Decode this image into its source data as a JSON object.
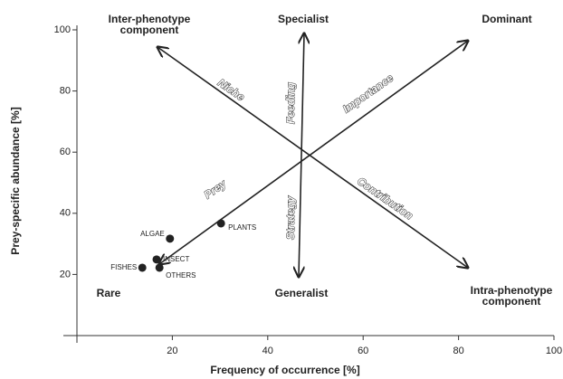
{
  "chart_data": {
    "type": "scatter",
    "xlabel": "Frequency of occurrence [%]",
    "ylabel": "Prey-specific abundance [%]",
    "xlim": [
      0,
      100
    ],
    "ylim": [
      0,
      100
    ],
    "xticks": [
      20,
      40,
      60,
      80,
      100
    ],
    "yticks": [
      20,
      40,
      60,
      80,
      100
    ],
    "color": "#222222",
    "labels": [
      "ALGAE",
      "PLANTS",
      "INSECT",
      "OTHERS",
      "FISHES"
    ],
    "x": [
      19.5,
      30.2,
      16.7,
      17.3,
      13.7
    ],
    "values": [
      31.7,
      36.7,
      24.9,
      22.2,
      22.2
    ],
    "axis_annotations": [
      "Niche",
      "Importance",
      "Feeding",
      "Strategy",
      "Prey",
      "Contribution"
    ],
    "corner_labels": [
      {
        "lines": [
          "Inter-phenotype",
          "component"
        ]
      },
      {
        "lines": [
          "Specialist"
        ]
      },
      {
        "lines": [
          "Dominant"
        ]
      },
      {
        "lines": [
          "Rare"
        ]
      },
      {
        "lines": [
          "Generalist"
        ]
      },
      {
        "lines": [
          "Intra-phenotype",
          "component"
        ]
      }
    ]
  }
}
